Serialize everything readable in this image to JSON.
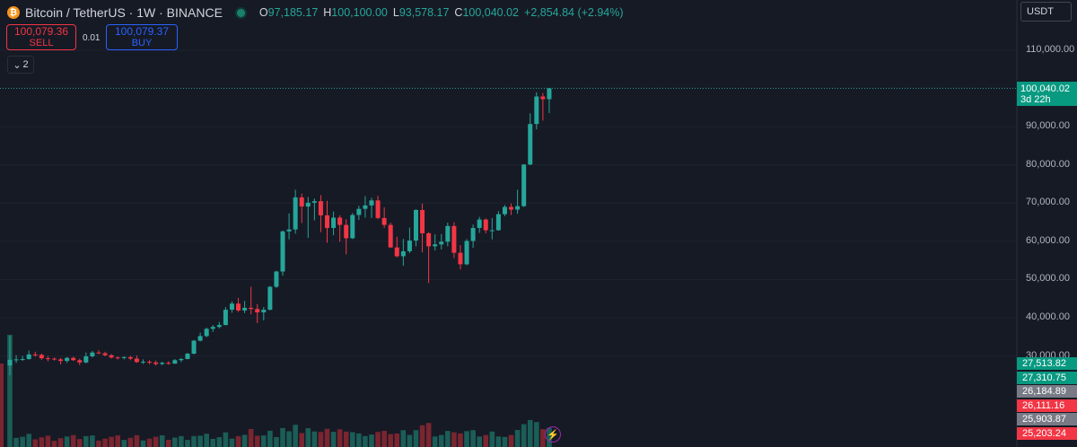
{
  "header": {
    "coin_icon": "bitcoin-icon",
    "symbol": "Bitcoin / TetherUS · 1W · BINANCE",
    "ohlc": [
      {
        "k": "O",
        "v": "97,185.17"
      },
      {
        "k": "H",
        "v": "100,100.00"
      },
      {
        "k": "L",
        "v": "93,578.17"
      },
      {
        "k": "C",
        "v": "100,040.02"
      }
    ],
    "change": "+2,854.84 (+2.94%)"
  },
  "trade": {
    "sell_price": "100,079.36",
    "sell_label": "SELL",
    "spread": "0.01",
    "buy_price": "100,079.37",
    "buy_label": "BUY"
  },
  "indicators_toggle": {
    "icon": "chevron-down-icon",
    "count": "2"
  },
  "currency": "USDT",
  "price_scale": [
    "110,000.00",
    "90,000.00",
    "80,000.00",
    "70,000.00",
    "60,000.00",
    "50,000.00",
    "40,000.00",
    "30,000.00"
  ],
  "last_price": {
    "value": "100,040.02",
    "countdown": "3d 22h",
    "color": "#089981"
  },
  "volume_labels": [
    {
      "value": "27,513.82",
      "color": "#089981"
    },
    {
      "value": "27,310.75",
      "color": "#089981"
    },
    {
      "value": "26,184.89",
      "color": "#787b86"
    },
    {
      "value": "26,111.16",
      "color": "#f23645"
    },
    {
      "value": "25,903.87",
      "color": "#787b86"
    },
    {
      "value": "25,203.24",
      "color": "#f23645"
    }
  ],
  "colors": {
    "up": "#26a69a",
    "down": "#f23645",
    "background": "#161a25"
  },
  "chart_data": {
    "type": "candlestick",
    "interval": "1W",
    "y_axis": {
      "min": 30000,
      "max": 110000
    },
    "candles": [
      {
        "o": 27500,
        "h": 35200,
        "l": 25000,
        "c": 29000
      },
      {
        "o": 29000,
        "h": 30200,
        "l": 28200,
        "c": 29100
      },
      {
        "o": 29100,
        "h": 30000,
        "l": 28700,
        "c": 29200
      },
      {
        "o": 29200,
        "h": 31400,
        "l": 29000,
        "c": 30400
      },
      {
        "o": 30400,
        "h": 31100,
        "l": 29800,
        "c": 30300
      },
      {
        "o": 30300,
        "h": 30600,
        "l": 29000,
        "c": 29400
      },
      {
        "o": 29400,
        "h": 30000,
        "l": 28600,
        "c": 29300
      },
      {
        "o": 29300,
        "h": 29600,
        "l": 28800,
        "c": 29100
      },
      {
        "o": 29100,
        "h": 29500,
        "l": 27800,
        "c": 28700
      },
      {
        "o": 28700,
        "h": 29700,
        "l": 28200,
        "c": 29500
      },
      {
        "o": 29500,
        "h": 29800,
        "l": 28700,
        "c": 28900
      },
      {
        "o": 28900,
        "h": 29300,
        "l": 27600,
        "c": 28300
      },
      {
        "o": 28300,
        "h": 30900,
        "l": 28100,
        "c": 29900
      },
      {
        "o": 29900,
        "h": 31300,
        "l": 29600,
        "c": 30900
      },
      {
        "o": 30900,
        "h": 31500,
        "l": 30500,
        "c": 30700
      },
      {
        "o": 30700,
        "h": 31100,
        "l": 29900,
        "c": 30200
      },
      {
        "o": 30200,
        "h": 30500,
        "l": 29300,
        "c": 29600
      },
      {
        "o": 29600,
        "h": 29900,
        "l": 29100,
        "c": 29500
      },
      {
        "o": 29500,
        "h": 29900,
        "l": 29100,
        "c": 29700
      },
      {
        "o": 29700,
        "h": 30000,
        "l": 28900,
        "c": 29300
      },
      {
        "o": 29300,
        "h": 30100,
        "l": 28200,
        "c": 28400
      },
      {
        "o": 28400,
        "h": 29100,
        "l": 27900,
        "c": 28500
      },
      {
        "o": 28500,
        "h": 28900,
        "l": 27800,
        "c": 28300
      },
      {
        "o": 28300,
        "h": 28800,
        "l": 27500,
        "c": 27900
      },
      {
        "o": 27900,
        "h": 28500,
        "l": 27600,
        "c": 28200
      },
      {
        "o": 28200,
        "h": 28600,
        "l": 27700,
        "c": 28000
      },
      {
        "o": 28000,
        "h": 29200,
        "l": 27900,
        "c": 28900
      },
      {
        "o": 28900,
        "h": 29500,
        "l": 28400,
        "c": 29200
      },
      {
        "o": 29200,
        "h": 30800,
        "l": 29100,
        "c": 30600
      },
      {
        "o": 30600,
        "h": 34200,
        "l": 30400,
        "c": 34000
      },
      {
        "o": 34000,
        "h": 36100,
        "l": 33800,
        "c": 35200
      },
      {
        "o": 35200,
        "h": 37400,
        "l": 34900,
        "c": 37100
      },
      {
        "o": 37100,
        "h": 38100,
        "l": 36300,
        "c": 37600
      },
      {
        "o": 37600,
        "h": 38900,
        "l": 37200,
        "c": 38100
      },
      {
        "o": 38100,
        "h": 42800,
        "l": 38000,
        "c": 42100
      },
      {
        "o": 42100,
        "h": 44300,
        "l": 41300,
        "c": 43700
      },
      {
        "o": 43700,
        "h": 45200,
        "l": 41500,
        "c": 41900
      },
      {
        "o": 41900,
        "h": 44400,
        "l": 41200,
        "c": 42600
      },
      {
        "o": 42600,
        "h": 48100,
        "l": 40900,
        "c": 42300
      },
      {
        "o": 42300,
        "h": 43600,
        "l": 38600,
        "c": 41400
      },
      {
        "o": 41400,
        "h": 42800,
        "l": 39300,
        "c": 42100
      },
      {
        "o": 42100,
        "h": 48300,
        "l": 41900,
        "c": 48100
      },
      {
        "o": 48100,
        "h": 52300,
        "l": 47800,
        "c": 52100
      },
      {
        "o": 52100,
        "h": 62800,
        "l": 51000,
        "c": 62600
      },
      {
        "o": 62600,
        "h": 67300,
        "l": 60500,
        "c": 63100
      },
      {
        "o": 63100,
        "h": 73500,
        "l": 62000,
        "c": 71500
      },
      {
        "o": 71500,
        "h": 72500,
        "l": 64800,
        "c": 69100
      },
      {
        "o": 69100,
        "h": 71600,
        "l": 60900,
        "c": 70100
      },
      {
        "o": 70100,
        "h": 71200,
        "l": 65500,
        "c": 70500
      },
      {
        "o": 70500,
        "h": 72100,
        "l": 62400,
        "c": 66800
      },
      {
        "o": 66800,
        "h": 70600,
        "l": 59600,
        "c": 63500
      },
      {
        "o": 63500,
        "h": 67800,
        "l": 61600,
        "c": 66200
      },
      {
        "o": 66200,
        "h": 66800,
        "l": 59900,
        "c": 64300
      },
      {
        "o": 64300,
        "h": 65800,
        "l": 56600,
        "c": 60800
      },
      {
        "o": 60800,
        "h": 67400,
        "l": 60600,
        "c": 66900
      },
      {
        "o": 66900,
        "h": 69300,
        "l": 65600,
        "c": 68500
      },
      {
        "o": 68500,
        "h": 71800,
        "l": 66200,
        "c": 69400
      },
      {
        "o": 69400,
        "h": 71400,
        "l": 66100,
        "c": 70700
      },
      {
        "o": 70700,
        "h": 71900,
        "l": 65800,
        "c": 66100
      },
      {
        "o": 66100,
        "h": 68900,
        "l": 63500,
        "c": 64300
      },
      {
        "o": 64300,
        "h": 64900,
        "l": 58300,
        "c": 58400
      },
      {
        "o": 58400,
        "h": 61200,
        "l": 55800,
        "c": 56100
      },
      {
        "o": 56100,
        "h": 60600,
        "l": 53600,
        "c": 57400
      },
      {
        "o": 57400,
        "h": 63600,
        "l": 56900,
        "c": 60200
      },
      {
        "o": 60200,
        "h": 68400,
        "l": 58700,
        "c": 68200
      },
      {
        "o": 68200,
        "h": 69900,
        "l": 57100,
        "c": 62100
      },
      {
        "o": 62100,
        "h": 62400,
        "l": 49100,
        "c": 58700
      },
      {
        "o": 58700,
        "h": 61800,
        "l": 57600,
        "c": 59200
      },
      {
        "o": 59200,
        "h": 61900,
        "l": 57900,
        "c": 59900
      },
      {
        "o": 59900,
        "h": 64900,
        "l": 58700,
        "c": 64000
      },
      {
        "o": 64000,
        "h": 65000,
        "l": 55600,
        "c": 57000
      },
      {
        "o": 57000,
        "h": 59000,
        "l": 52600,
        "c": 54000
      },
      {
        "o": 54000,
        "h": 60600,
        "l": 53700,
        "c": 60100
      },
      {
        "o": 60100,
        "h": 64400,
        "l": 58300,
        "c": 63500
      },
      {
        "o": 63500,
        "h": 66400,
        "l": 62200,
        "c": 65700
      },
      {
        "o": 65700,
        "h": 66000,
        "l": 62100,
        "c": 62900
      },
      {
        "o": 62900,
        "h": 66100,
        "l": 60500,
        "c": 62900
      },
      {
        "o": 62900,
        "h": 67900,
        "l": 62800,
        "c": 67100
      },
      {
        "o": 67100,
        "h": 69500,
        "l": 66600,
        "c": 69000
      },
      {
        "o": 69000,
        "h": 69900,
        "l": 66900,
        "c": 68300
      },
      {
        "o": 68300,
        "h": 73500,
        "l": 67200,
        "c": 69200
      },
      {
        "o": 69200,
        "h": 80200,
        "l": 69000,
        "c": 80100
      },
      {
        "o": 80100,
        "h": 93500,
        "l": 79900,
        "c": 90700
      },
      {
        "o": 90700,
        "h": 99000,
        "l": 89300,
        "c": 97900
      },
      {
        "o": 97900,
        "h": 98800,
        "l": 91600,
        "c": 97200
      },
      {
        "o": 97200,
        "h": 100100,
        "l": 93578,
        "c": 100040
      }
    ]
  }
}
